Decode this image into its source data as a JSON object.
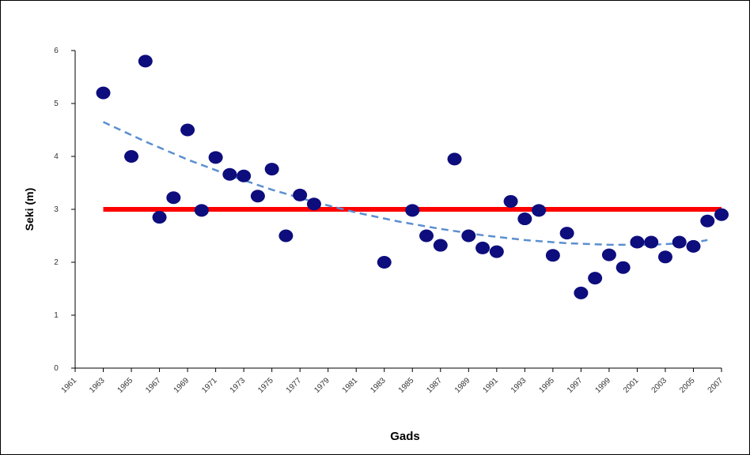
{
  "chart_data": {
    "type": "scatter",
    "title": "",
    "xlabel": "Gads",
    "ylabel": "Seki (m)",
    "xlim": [
      1961,
      2007
    ],
    "ylim": [
      0,
      6
    ],
    "x_tick_labels": [
      "1961",
      "1963",
      "1965",
      "1967",
      "1969",
      "1971",
      "1973",
      "1975",
      "1977",
      "1979",
      "1981",
      "1983",
      "1985",
      "1987",
      "1989",
      "1991",
      "1993",
      "1995",
      "1997",
      "1999",
      "2001",
      "2003",
      "2005",
      "2007"
    ],
    "y_tick_labels": [
      "0",
      "1",
      "2",
      "3",
      "4",
      "5",
      "6"
    ],
    "grid": false,
    "legend": "none",
    "points": {
      "x": [
        1963,
        1965,
        1966,
        1967,
        1968,
        1969,
        1970,
        1971,
        1972,
        1973,
        1974,
        1975,
        1976,
        1977,
        1978,
        1983,
        1985,
        1986,
        1987,
        1988,
        1989,
        1990,
        1991,
        1992,
        1993,
        1994,
        1995,
        1996,
        1997,
        1998,
        1999,
        2000,
        2001,
        2002,
        2003,
        2004,
        2005,
        2006,
        2007
      ],
      "y": [
        5.2,
        4.0,
        5.8,
        2.85,
        3.22,
        4.5,
        2.98,
        3.98,
        3.66,
        3.63,
        3.25,
        3.76,
        2.5,
        3.27,
        3.1,
        2.0,
        2.98,
        2.5,
        2.32,
        3.95,
        2.5,
        2.27,
        2.2,
        3.15,
        2.82,
        2.98,
        2.13,
        2.55,
        1.42,
        1.7,
        2.14,
        1.9,
        2.38,
        2.38,
        2.1,
        2.38,
        2.3,
        2.78,
        2.9
      ],
      "color": "#0d0d7d"
    },
    "reference_line": {
      "y": 3,
      "x_range": [
        1963,
        2007
      ],
      "color": "#ff0000"
    },
    "trend_line": {
      "x": [
        1963,
        1966,
        1969,
        1972,
        1975,
        1978,
        1981,
        1984,
        1987,
        1990,
        1993,
        1996,
        1999,
        2002,
        2005,
        2006
      ],
      "y": [
        4.65,
        4.28,
        3.94,
        3.64,
        3.37,
        3.14,
        2.94,
        2.77,
        2.63,
        2.51,
        2.42,
        2.36,
        2.33,
        2.33,
        2.37,
        2.42
      ],
      "color": "#5b8fd0",
      "style": "dashed"
    }
  }
}
